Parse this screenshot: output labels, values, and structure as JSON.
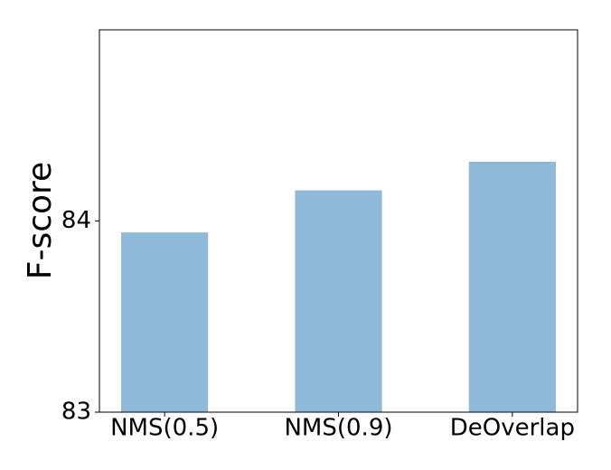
{
  "chart_data": {
    "type": "bar",
    "y_label": "F-score",
    "categories": [
      "NMS(0.5)",
      "NMS(0.9)",
      "DeOverlap"
    ],
    "values": [
      83.94,
      84.16,
      84.31
    ],
    "color": "#8fb9d9",
    "ylim": [
      83,
      85
    ],
    "yticks": [
      83,
      84
    ]
  }
}
